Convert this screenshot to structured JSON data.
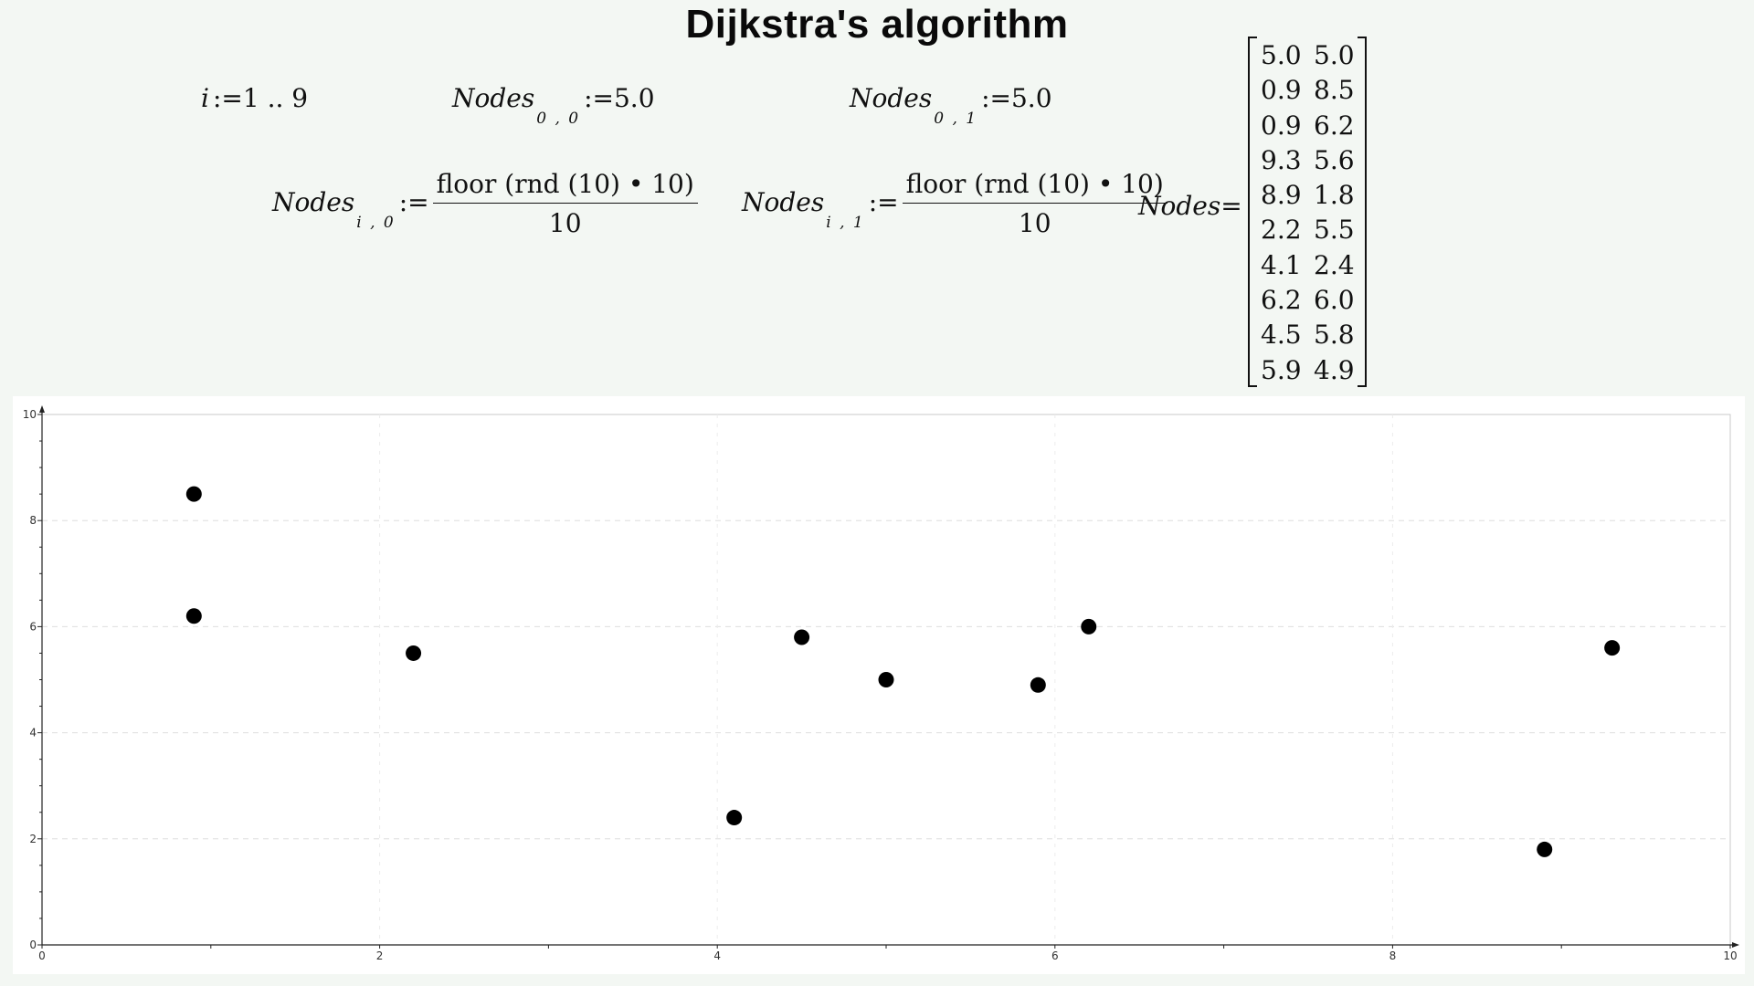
{
  "title": "Dijkstra's algorithm",
  "equations": {
    "range": {
      "var": "i",
      "op": ":=",
      "value": "1 .. 9"
    },
    "init_x": {
      "name": "Nodes",
      "sub": "0 , 0",
      "op": ":=",
      "value": "5.0"
    },
    "init_y": {
      "name": "Nodes",
      "sub": "0 , 1",
      "op": ":=",
      "value": "5.0"
    },
    "rand_x": {
      "name": "Nodes",
      "sub": "i , 0",
      "op": ":=",
      "numerator": "floor (rnd (10) • 10)",
      "denominator": "10"
    },
    "rand_y": {
      "name": "Nodes",
      "sub": "i , 1",
      "op": ":=",
      "numerator": "floor (rnd (10) • 10)",
      "denominator": "10"
    },
    "result": {
      "name": "Nodes",
      "op": "="
    }
  },
  "matrix": [
    [
      "5.0",
      "5.0"
    ],
    [
      "0.9",
      "8.5"
    ],
    [
      "0.9",
      "6.2"
    ],
    [
      "9.3",
      "5.6"
    ],
    [
      "8.9",
      "1.8"
    ],
    [
      "2.2",
      "5.5"
    ],
    [
      "4.1",
      "2.4"
    ],
    [
      "6.2",
      "6.0"
    ],
    [
      "4.5",
      "5.8"
    ],
    [
      "5.9",
      "4.9"
    ]
  ],
  "chart_data": {
    "type": "scatter",
    "title": "",
    "xlabel": "",
    "ylabel": "",
    "xlim": [
      0,
      10
    ],
    "ylim": [
      0,
      10
    ],
    "x_ticks": [
      0,
      2,
      4,
      6,
      8,
      10
    ],
    "y_ticks": [
      0,
      2,
      4,
      6,
      8,
      10
    ],
    "grid": true,
    "marker_color": "#000000",
    "points": [
      {
        "x": 5.0,
        "y": 5.0
      },
      {
        "x": 0.9,
        "y": 8.5
      },
      {
        "x": 0.9,
        "y": 6.2
      },
      {
        "x": 9.3,
        "y": 5.6
      },
      {
        "x": 8.9,
        "y": 1.8
      },
      {
        "x": 2.2,
        "y": 5.5
      },
      {
        "x": 4.1,
        "y": 2.4
      },
      {
        "x": 6.2,
        "y": 6.0
      },
      {
        "x": 4.5,
        "y": 5.8
      },
      {
        "x": 5.9,
        "y": 4.9
      }
    ]
  }
}
